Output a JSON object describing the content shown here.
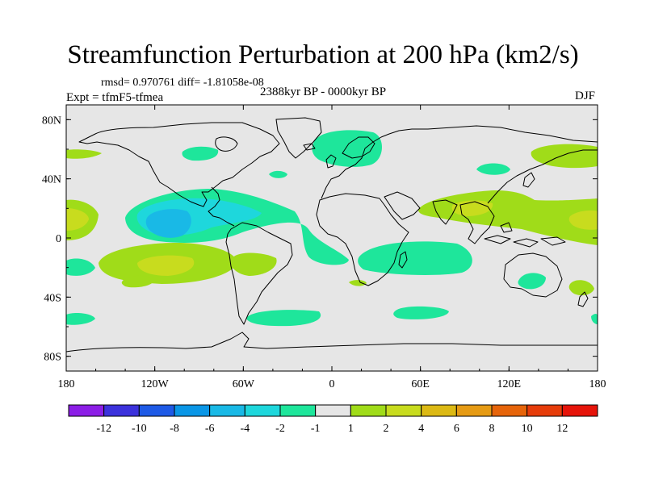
{
  "title": "Streamfunction Perturbation at 200 hPa (km2/s)",
  "stats_line": "rmsd= 0.970761 diff= -1.81058e-08",
  "period": "2388kyr BP - 0000kyr BP",
  "experiment": "Expt = tfmF5-tfmea",
  "season": "DJF",
  "map": {
    "projection": "cylindrical equidistant",
    "lon_range": [
      -180,
      180
    ],
    "lat_range": [
      -90,
      90
    ],
    "x_ticks": [
      {
        "lon": -180,
        "label": "180"
      },
      {
        "lon": -120,
        "label": "120W"
      },
      {
        "lon": -60,
        "label": "60W"
      },
      {
        "lon": 0,
        "label": "0"
      },
      {
        "lon": 60,
        "label": "60E"
      },
      {
        "lon": 120,
        "label": "120E"
      },
      {
        "lon": 180,
        "label": "180"
      }
    ],
    "y_ticks": [
      {
        "lat": 80,
        "label": "80N"
      },
      {
        "lat": 40,
        "label": "40N"
      },
      {
        "lat": 0,
        "label": "0"
      },
      {
        "lat": -40,
        "label": "40S"
      },
      {
        "lat": -80,
        "label": "80S"
      }
    ],
    "background_color": "#e6e6e6",
    "coastline_color": "#000000"
  },
  "colorbar": {
    "colors": [
      "#8c1ee6",
      "#3c32dc",
      "#1e5ae6",
      "#0a96e6",
      "#19b9e6",
      "#1ed7dc",
      "#1ee69b",
      "#e6e6e6",
      "#a0dc19",
      "#c8dc1e",
      "#dcb914",
      "#e69b14",
      "#e6640a",
      "#e63c0a",
      "#e6140a"
    ],
    "labels": [
      "-12",
      "-10",
      "-8",
      "-6",
      "-4",
      "-2",
      "-1",
      "1",
      "2",
      "4",
      "6",
      "8",
      "10",
      "12"
    ]
  },
  "palette": {
    "neg1": "#1ee69b",
    "neg2": "#1ed7dc",
    "neg3": "#19b9e6",
    "pos1": "#a0dc19",
    "pos2": "#c8dc1e"
  }
}
